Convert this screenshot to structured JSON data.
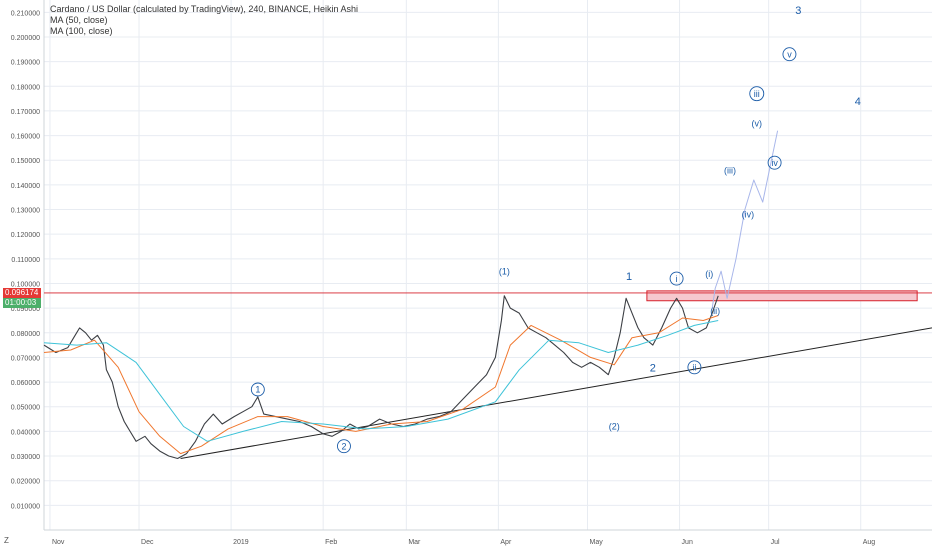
{
  "legend": {
    "title": "Cardano / US Dollar (calculated by TradingView), 240, BINANCE, Heikin Ashi",
    "ma50": "MA (50, close)",
    "ma100": "MA (100, close)"
  },
  "price_tags": {
    "current_price": "0.096174",
    "countdown": "01:00:03"
  },
  "z_label": "Z",
  "colors": {
    "background": "#ffffff",
    "grid": "#e8ecf2",
    "candle": "#3c3f44",
    "ma50": "#f0772e",
    "ma100": "#3ec3d8",
    "wave_label": "#1b5ca8",
    "projection": "#a8b6ea",
    "resistance_zone": "#f6c8ce",
    "resistance_border": "#d6212b",
    "current_price_bg": "#e53935",
    "countdown_bg": "#4caf6a"
  },
  "chart_data": {
    "type": "line",
    "title": "Cardano / US Dollar (calculated by TradingView), 240, BINANCE, Heikin Ashi",
    "y_scale": "linear",
    "ylim": [
      0.0,
      0.215
    ],
    "y_ticks": [
      "0.010000",
      "0.020000",
      "0.030000",
      "0.040000",
      "0.050000",
      "0.060000",
      "0.070000",
      "0.080000",
      "0.090000",
      "0.100000",
      "0.110000",
      "0.120000",
      "0.130000",
      "0.140000",
      "0.150000",
      "0.160000",
      "0.170000",
      "0.180000",
      "0.190000",
      "0.200000",
      "0.210000"
    ],
    "x_ticks": [
      "Nov",
      "Dec",
      "2019",
      "Feb",
      "Mar",
      "Apr",
      "May",
      "Jun",
      "Jul",
      "Aug"
    ],
    "x_tick_dates": [
      "2018-11-01",
      "2018-12-01",
      "2019-01-01",
      "2019-02-01",
      "2019-03-01",
      "2019-04-01",
      "2019-05-01",
      "2019-06-01",
      "2019-07-01",
      "2019-08-01"
    ],
    "xlim": [
      "2018-10-30",
      "2019-08-25"
    ],
    "grid": true,
    "legend_position": "top-left",
    "series": [
      {
        "name": "Cardano / US Dollar",
        "points": [
          [
            "2018-10-30",
            0.075
          ],
          [
            "2018-11-03",
            0.072
          ],
          [
            "2018-11-07",
            0.074
          ],
          [
            "2018-11-09",
            0.078
          ],
          [
            "2018-11-11",
            0.082
          ],
          [
            "2018-11-13",
            0.08
          ],
          [
            "2018-11-15",
            0.077
          ],
          [
            "2018-11-17",
            0.079
          ],
          [
            "2018-11-19",
            0.075
          ],
          [
            "2018-11-20",
            0.065
          ],
          [
            "2018-11-22",
            0.06
          ],
          [
            "2018-11-24",
            0.05
          ],
          [
            "2018-11-26",
            0.044
          ],
          [
            "2018-11-28",
            0.04
          ],
          [
            "2018-11-30",
            0.036
          ],
          [
            "2018-12-03",
            0.038
          ],
          [
            "2018-12-05",
            0.035
          ],
          [
            "2018-12-08",
            0.032
          ],
          [
            "2018-12-11",
            0.03
          ],
          [
            "2018-12-14",
            0.029
          ],
          [
            "2018-12-17",
            0.031
          ],
          [
            "2018-12-20",
            0.036
          ],
          [
            "2018-12-23",
            0.043
          ],
          [
            "2018-12-26",
            0.047
          ],
          [
            "2018-12-29",
            0.043
          ],
          [
            "2019-01-02",
            0.046
          ],
          [
            "2019-01-05",
            0.048
          ],
          [
            "2019-01-08",
            0.05
          ],
          [
            "2019-01-10",
            0.054
          ],
          [
            "2019-01-12",
            0.047
          ],
          [
            "2019-01-16",
            0.046
          ],
          [
            "2019-01-20",
            0.045
          ],
          [
            "2019-01-24",
            0.044
          ],
          [
            "2019-01-28",
            0.042
          ],
          [
            "2019-02-01",
            0.039
          ],
          [
            "2019-02-04",
            0.038
          ],
          [
            "2019-02-07",
            0.04
          ],
          [
            "2019-02-10",
            0.043
          ],
          [
            "2019-02-13",
            0.041
          ],
          [
            "2019-02-16",
            0.042
          ],
          [
            "2019-02-20",
            0.045
          ],
          [
            "2019-02-24",
            0.043
          ],
          [
            "2019-02-28",
            0.042
          ],
          [
            "2019-03-04",
            0.043
          ],
          [
            "2019-03-08",
            0.045
          ],
          [
            "2019-03-12",
            0.046
          ],
          [
            "2019-03-16",
            0.048
          ],
          [
            "2019-03-20",
            0.053
          ],
          [
            "2019-03-24",
            0.058
          ],
          [
            "2019-03-28",
            0.063
          ],
          [
            "2019-03-31",
            0.07
          ],
          [
            "2019-04-02",
            0.085
          ],
          [
            "2019-04-03",
            0.095
          ],
          [
            "2019-04-05",
            0.09
          ],
          [
            "2019-04-08",
            0.088
          ],
          [
            "2019-04-11",
            0.082
          ],
          [
            "2019-04-14",
            0.08
          ],
          [
            "2019-04-17",
            0.078
          ],
          [
            "2019-04-20",
            0.075
          ],
          [
            "2019-04-23",
            0.072
          ],
          [
            "2019-04-26",
            0.068
          ],
          [
            "2019-04-29",
            0.066
          ],
          [
            "2019-05-02",
            0.068
          ],
          [
            "2019-05-05",
            0.066
          ],
          [
            "2019-05-08",
            0.063
          ],
          [
            "2019-05-10",
            0.07
          ],
          [
            "2019-05-12",
            0.08
          ],
          [
            "2019-05-14",
            0.094
          ],
          [
            "2019-05-16",
            0.088
          ],
          [
            "2019-05-18",
            0.082
          ],
          [
            "2019-05-20",
            0.078
          ],
          [
            "2019-05-23",
            0.075
          ],
          [
            "2019-05-26",
            0.082
          ],
          [
            "2019-05-29",
            0.09
          ],
          [
            "2019-05-31",
            0.094
          ],
          [
            "2019-06-02",
            0.09
          ],
          [
            "2019-06-04",
            0.082
          ],
          [
            "2019-06-07",
            0.08
          ],
          [
            "2019-06-10",
            0.082
          ],
          [
            "2019-06-12",
            0.088
          ],
          [
            "2019-06-14",
            0.095
          ]
        ]
      },
      {
        "name": "MA (50, close)",
        "points": [
          [
            "2018-10-30",
            0.072
          ],
          [
            "2018-11-08",
            0.073
          ],
          [
            "2018-11-16",
            0.077
          ],
          [
            "2018-11-24",
            0.066
          ],
          [
            "2018-12-01",
            0.048
          ],
          [
            "2018-12-08",
            0.038
          ],
          [
            "2018-12-15",
            0.031
          ],
          [
            "2018-12-22",
            0.034
          ],
          [
            "2018-12-31",
            0.041
          ],
          [
            "2019-01-10",
            0.046
          ],
          [
            "2019-01-20",
            0.046
          ],
          [
            "2019-02-01",
            0.042
          ],
          [
            "2019-02-12",
            0.04
          ],
          [
            "2019-02-24",
            0.043
          ],
          [
            "2019-03-08",
            0.044
          ],
          [
            "2019-03-20",
            0.049
          ],
          [
            "2019-03-31",
            0.058
          ],
          [
            "2019-04-05",
            0.075
          ],
          [
            "2019-04-12",
            0.083
          ],
          [
            "2019-04-22",
            0.077
          ],
          [
            "2019-05-02",
            0.07
          ],
          [
            "2019-05-10",
            0.067
          ],
          [
            "2019-05-16",
            0.078
          ],
          [
            "2019-05-25",
            0.08
          ],
          [
            "2019-06-02",
            0.086
          ],
          [
            "2019-06-09",
            0.085
          ],
          [
            "2019-06-14",
            0.087
          ]
        ]
      },
      {
        "name": "MA (100, close)",
        "points": [
          [
            "2018-10-30",
            0.076
          ],
          [
            "2018-11-10",
            0.075
          ],
          [
            "2018-11-20",
            0.076
          ],
          [
            "2018-11-30",
            0.068
          ],
          [
            "2018-12-08",
            0.055
          ],
          [
            "2018-12-16",
            0.042
          ],
          [
            "2018-12-24",
            0.036
          ],
          [
            "2019-01-05",
            0.04
          ],
          [
            "2019-01-18",
            0.044
          ],
          [
            "2019-02-01",
            0.043
          ],
          [
            "2019-02-15",
            0.041
          ],
          [
            "2019-03-01",
            0.042
          ],
          [
            "2019-03-15",
            0.045
          ],
          [
            "2019-03-31",
            0.052
          ],
          [
            "2019-04-08",
            0.065
          ],
          [
            "2019-04-18",
            0.077
          ],
          [
            "2019-04-28",
            0.076
          ],
          [
            "2019-05-08",
            0.072
          ],
          [
            "2019-05-18",
            0.075
          ],
          [
            "2019-05-28",
            0.079
          ],
          [
            "2019-06-06",
            0.083
          ],
          [
            "2019-06-14",
            0.085
          ]
        ]
      },
      {
        "name": "projection",
        "points": [
          [
            "2019-06-12",
            0.09
          ],
          [
            "2019-06-13",
            0.098
          ],
          [
            "2019-06-15",
            0.105
          ],
          [
            "2019-06-17",
            0.094
          ],
          [
            "2019-06-20",
            0.11
          ],
          [
            "2019-06-23",
            0.13
          ],
          [
            "2019-06-26",
            0.142
          ],
          [
            "2019-06-29",
            0.133
          ],
          [
            "2019-07-04",
            0.162
          ]
        ]
      },
      {
        "name": "trendline",
        "points": [
          [
            "2018-12-15",
            0.029
          ],
          [
            "2019-08-25",
            0.082
          ]
        ]
      }
    ],
    "price_line": 0.096174,
    "resistance_zone": {
      "x": [
        "2019-05-21",
        "2019-08-20"
      ],
      "y": [
        0.093,
        0.097
      ]
    },
    "wave_labels": [
      {
        "text": "1",
        "x": "2019-01-10",
        "y": 0.057,
        "circled": true
      },
      {
        "text": "2",
        "x": "2019-02-08",
        "y": 0.034,
        "circled": true
      },
      {
        "text": "(1)",
        "x": "2019-04-03",
        "y": 0.105,
        "circled": false
      },
      {
        "text": "(2)",
        "x": "2019-05-10",
        "y": 0.042,
        "circled": false
      },
      {
        "text": "1",
        "x": "2019-05-15",
        "y": 0.103,
        "circled": false
      },
      {
        "text": "2",
        "x": "2019-05-23",
        "y": 0.066,
        "circled": false
      },
      {
        "text": "i",
        "x": "2019-05-31",
        "y": 0.102,
        "circled": true
      },
      {
        "text": "(i)",
        "x": "2019-06-11",
        "y": 0.104,
        "circled": false
      },
      {
        "text": "(ii)",
        "x": "2019-06-13",
        "y": 0.089,
        "circled": false
      },
      {
        "text": "ii",
        "x": "2019-06-06",
        "y": 0.066,
        "circled": true
      },
      {
        "text": "(iii)",
        "x": "2019-06-18",
        "y": 0.146,
        "circled": false
      },
      {
        "text": "(iv)",
        "x": "2019-06-24",
        "y": 0.128,
        "circled": false
      },
      {
        "text": "(v)",
        "x": "2019-06-27",
        "y": 0.165,
        "circled": false
      },
      {
        "text": "iii",
        "x": "2019-06-27",
        "y": 0.177,
        "circled": true
      },
      {
        "text": "iv",
        "x": "2019-07-03",
        "y": 0.149,
        "circled": true
      },
      {
        "text": "v",
        "x": "2019-07-08",
        "y": 0.193,
        "circled": true
      },
      {
        "text": "3",
        "x": "2019-07-11",
        "y": 0.211,
        "circled": false
      },
      {
        "text": "4",
        "x": "2019-07-31",
        "y": 0.174,
        "circled": false
      }
    ]
  }
}
